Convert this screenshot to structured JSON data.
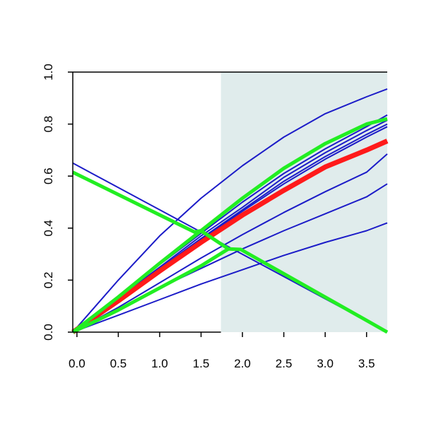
{
  "chart_data": {
    "type": "line",
    "title": "",
    "xlabel": "",
    "ylabel": "",
    "xlim": [
      -0.05,
      3.75
    ],
    "ylim": [
      0,
      1
    ],
    "x_ticks": [
      "0.0",
      "0.5",
      "1.0",
      "1.5",
      "2.0",
      "2.5",
      "3.0",
      "3.5"
    ],
    "y_ticks": [
      "0.0",
      "0.2",
      "0.4",
      "0.6",
      "0.8",
      "1.0"
    ],
    "grid": false,
    "shaded_region": {
      "x_start": 1.74,
      "x_end": 3.75,
      "color": "#e0ecec"
    },
    "series": [
      {
        "color": "#1c1cc8",
        "width": 2,
        "points": [
          [
            -0.05,
            0
          ],
          [
            0.5,
            0.2
          ],
          [
            1.0,
            0.37
          ],
          [
            1.5,
            0.515
          ],
          [
            2.0,
            0.64
          ],
          [
            2.5,
            0.75
          ],
          [
            3.0,
            0.84
          ],
          [
            3.5,
            0.905
          ],
          [
            3.75,
            0.935
          ]
        ]
      },
      {
        "color": "#1c1cc8",
        "width": 2,
        "points": [
          [
            -0.05,
            0
          ],
          [
            0.5,
            0.135
          ],
          [
            1.0,
            0.26
          ],
          [
            1.5,
            0.38
          ],
          [
            2.0,
            0.5
          ],
          [
            2.5,
            0.61
          ],
          [
            3.0,
            0.705
          ],
          [
            3.5,
            0.79
          ],
          [
            3.75,
            0.835
          ]
        ]
      },
      {
        "color": "#1c1cc8",
        "width": 2,
        "points": [
          [
            -0.05,
            0
          ],
          [
            0.5,
            0.13
          ],
          [
            1.0,
            0.25
          ],
          [
            1.5,
            0.37
          ],
          [
            2.0,
            0.48
          ],
          [
            2.5,
            0.595
          ],
          [
            3.0,
            0.69
          ],
          [
            3.5,
            0.775
          ],
          [
            3.75,
            0.815
          ]
        ]
      },
      {
        "color": "#1c1cc8",
        "width": 2,
        "points": [
          [
            -0.05,
            0
          ],
          [
            0.5,
            0.125
          ],
          [
            1.0,
            0.245
          ],
          [
            1.5,
            0.36
          ],
          [
            2.0,
            0.47
          ],
          [
            2.5,
            0.58
          ],
          [
            3.0,
            0.675
          ],
          [
            3.5,
            0.76
          ],
          [
            3.75,
            0.8
          ]
        ]
      },
      {
        "color": "#1c1cc8",
        "width": 2,
        "points": [
          [
            -0.05,
            0
          ],
          [
            0.5,
            0.12
          ],
          [
            1.0,
            0.24
          ],
          [
            1.5,
            0.355
          ],
          [
            2.0,
            0.465
          ],
          [
            2.5,
            0.57
          ],
          [
            3.0,
            0.665
          ],
          [
            3.5,
            0.75
          ],
          [
            3.75,
            0.79
          ]
        ]
      },
      {
        "color": "#1c1cc8",
        "width": 2,
        "points": [
          [
            -0.05,
            0
          ],
          [
            0.5,
            0.095
          ],
          [
            1.0,
            0.19
          ],
          [
            1.5,
            0.285
          ],
          [
            2.0,
            0.375
          ],
          [
            2.5,
            0.46
          ],
          [
            3.0,
            0.54
          ],
          [
            3.5,
            0.615
          ],
          [
            3.75,
            0.685
          ]
        ]
      },
      {
        "color": "#1c1cc8",
        "width": 2,
        "points": [
          [
            -0.05,
            0
          ],
          [
            0.5,
            0.085
          ],
          [
            1.0,
            0.17
          ],
          [
            1.5,
            0.245
          ],
          [
            2.0,
            0.32
          ],
          [
            2.5,
            0.39
          ],
          [
            3.0,
            0.455
          ],
          [
            3.5,
            0.52
          ],
          [
            3.75,
            0.57
          ]
        ]
      },
      {
        "color": "#1c1cc8",
        "width": 2,
        "points": [
          [
            -0.05,
            0
          ],
          [
            0.5,
            0.065
          ],
          [
            1.0,
            0.125
          ],
          [
            1.5,
            0.185
          ],
          [
            2.0,
            0.24
          ],
          [
            2.5,
            0.295
          ],
          [
            3.0,
            0.345
          ],
          [
            3.5,
            0.39
          ],
          [
            3.75,
            0.42
          ]
        ]
      },
      {
        "color": "#1c1cc8",
        "width": 2,
        "points": [
          [
            -0.05,
            0.65
          ],
          [
            3.75,
            0.0
          ]
        ]
      },
      {
        "color": "#ff1a1a",
        "width": 7,
        "points": [
          [
            -0.05,
            0
          ],
          [
            0.5,
            0.12
          ],
          [
            1.0,
            0.235
          ],
          [
            1.5,
            0.345
          ],
          [
            2.0,
            0.45
          ],
          [
            2.5,
            0.545
          ],
          [
            3.0,
            0.635
          ],
          [
            3.5,
            0.7
          ],
          [
            3.75,
            0.735
          ]
        ]
      },
      {
        "color": "#22ee22",
        "width": 5,
        "points": [
          [
            -0.05,
            0
          ],
          [
            0.5,
            0.135
          ],
          [
            1.0,
            0.265
          ],
          [
            1.5,
            0.39
          ],
          [
            2.0,
            0.515
          ],
          [
            2.5,
            0.63
          ],
          [
            3.0,
            0.725
          ],
          [
            3.5,
            0.8
          ],
          [
            3.75,
            0.82
          ]
        ]
      },
      {
        "color": "#22ee22",
        "width": 5,
        "points": [
          [
            -0.05,
            0.615
          ],
          [
            1.42,
            0.385
          ],
          [
            1.5,
            0.39
          ],
          [
            1.83,
            0.32
          ],
          [
            1.98,
            0.318
          ],
          [
            3.75,
            0.0
          ]
        ]
      },
      {
        "color": "#22ee22",
        "width": 5,
        "points": [
          [
            -0.05,
            0
          ],
          [
            0.5,
            0.085
          ],
          [
            1.0,
            0.17
          ],
          [
            1.5,
            0.255
          ],
          [
            1.83,
            0.32
          ]
        ]
      }
    ]
  }
}
